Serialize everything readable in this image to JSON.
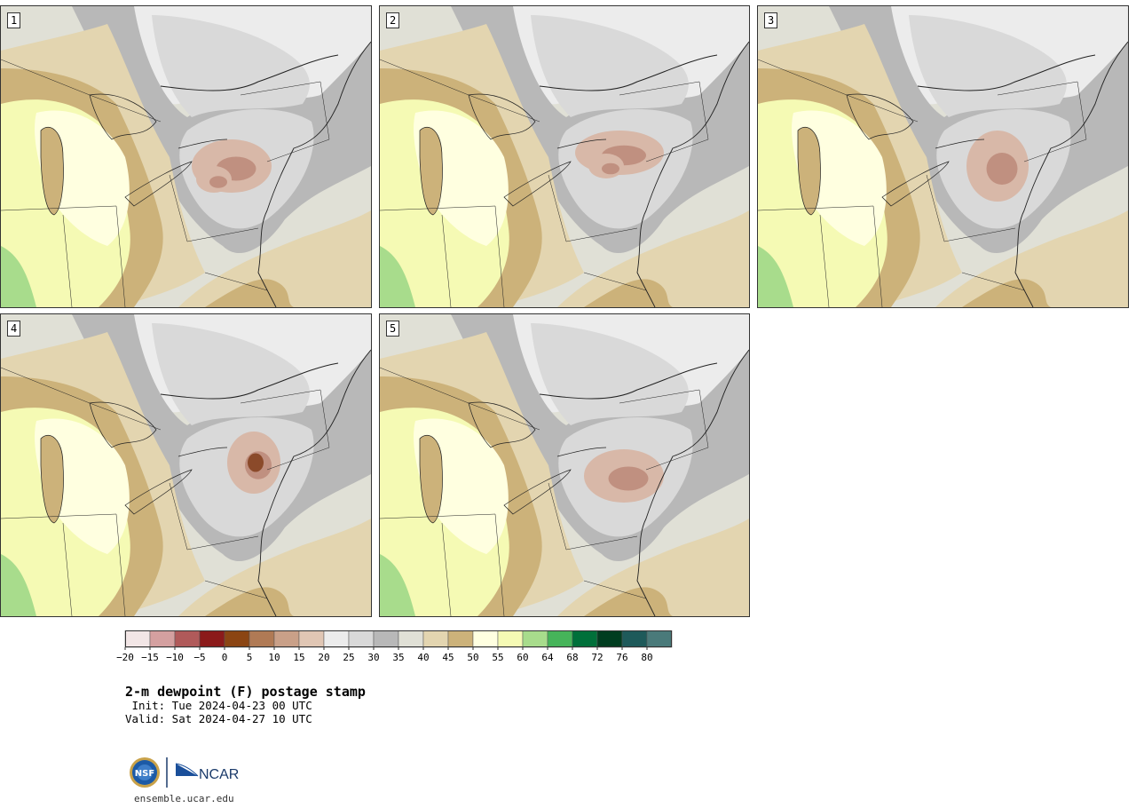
{
  "title": "2-m dewpoint (F) postage stamp",
  "init": " Init: Tue 2024-04-23 00 UTC",
  "valid": "Valid: Sat 2024-04-27 10 UTC",
  "website": "ensemble.ucar.edu",
  "logo": {
    "left_text": "NSF",
    "right_text": "NCAR"
  },
  "panels": [
    {
      "label": "1"
    },
    {
      "label": "2"
    },
    {
      "label": "3"
    },
    {
      "label": "4"
    },
    {
      "label": "5"
    }
  ],
  "colorbar": {
    "ticks": [
      "−20",
      "−15",
      "−10",
      "−5",
      "0",
      "5",
      "10",
      "15",
      "20",
      "25",
      "30",
      "35",
      "40",
      "45",
      "50",
      "55",
      "60",
      "64",
      "68",
      "72",
      "76",
      "80"
    ],
    "colors": [
      "#f2e6e6",
      "#d4a0a0",
      "#b05a5a",
      "#8b1a1a",
      "#8b4513",
      "#b07a55",
      "#c9a088",
      "#e0c6b4",
      "#ececec",
      "#d9d9d9",
      "#b8b8b8",
      "#e0e0d6",
      "#e3d5b0",
      "#ccb27a",
      "#ffffe0",
      "#f5fab4",
      "#a8dc8c",
      "#46b45a",
      "#00703a",
      "#003d20",
      "#1e5a5a",
      "#4a7a7a"
    ]
  }
}
